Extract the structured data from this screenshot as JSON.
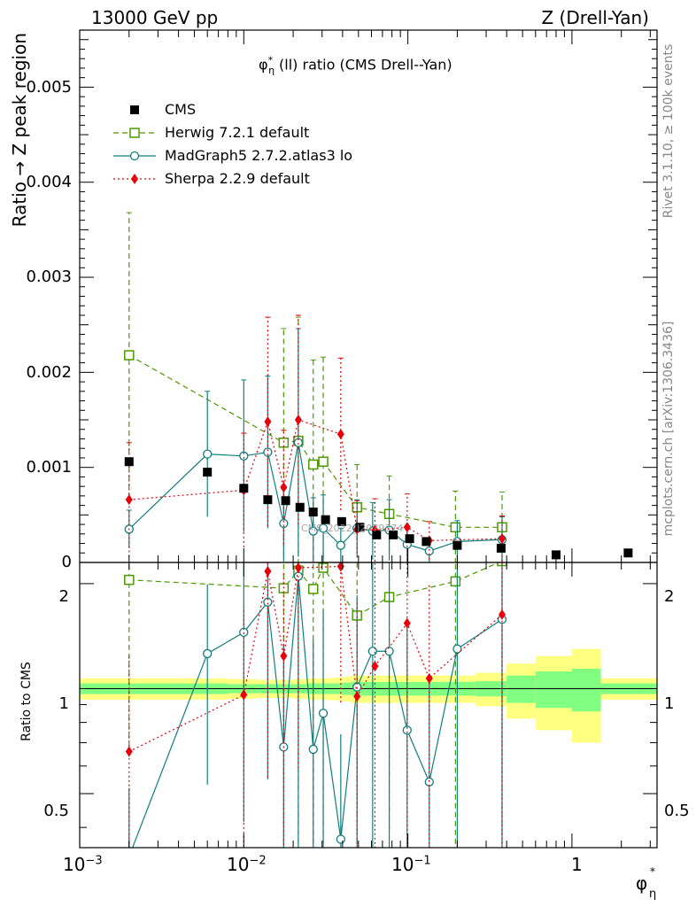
{
  "header": {
    "energy": "13000 GeV pp",
    "process": "Z (Drell-Yan)"
  },
  "side_text": {
    "rivet": "Rivet 3.1.10, ≥ 100k events",
    "mcplots": "mcplots.cern.ch [arXiv:1306.3436]"
  },
  "watermark": "CMS_2022_I2079374",
  "chart_data": {
    "type": "scatter",
    "title_main": "φ",
    "title_sup": "*",
    "title_sub": "η",
    "title_rest": "(ll) ratio (CMS Drell--Yan)",
    "ylabel": "Ratio → Z peak region",
    "ratio_ylabel": "Ratio to CMS",
    "xlabel_main": "φ",
    "xlabel_sup": "*",
    "xlabel_sub": "η",
    "xscale": "log",
    "xlim": [
      0.001,
      3.3
    ],
    "ylim": [
      0,
      0.0056
    ],
    "ratio_ylim": [
      0.35,
      2.3
    ],
    "y_ticks": [
      "0",
      "0.001",
      "0.002",
      "0.003",
      "0.004",
      "0.005"
    ],
    "x_ticks": [
      "10^-3",
      "10^-2",
      "10^-1",
      "1"
    ],
    "ratio_ticks": [
      "0.5",
      "1",
      "2"
    ],
    "legend_position": "top-left",
    "bins": [
      0.004,
      0.008,
      0.012,
      0.016,
      0.02,
      0.024,
      0.029,
      0.034,
      0.039,
      0.045,
      0.057,
      0.072,
      0.091,
      0.114,
      0.145,
      0.189,
      0.258,
      0.4,
      0.6,
      1.0,
      1.5,
      3.277
    ],
    "series": [
      {
        "name": "CMS",
        "color": "#000000",
        "marker": "square-filled",
        "points": [
          {
            "x": 0.002,
            "y": 0.00106
          },
          {
            "x": 0.006,
            "y": 0.00095
          },
          {
            "x": 0.01,
            "y": 0.00078
          },
          {
            "x": 0.014,
            "y": 0.00066
          },
          {
            "x": 0.018,
            "y": 0.00065
          },
          {
            "x": 0.022,
            "y": 0.00058
          },
          {
            "x": 0.0265,
            "y": 0.00053
          },
          {
            "x": 0.0315,
            "y": 0.00045
          },
          {
            "x": 0.0395,
            "y": 0.00043
          },
          {
            "x": 0.051,
            "y": 0.00037
          },
          {
            "x": 0.0645,
            "y": 0.00029
          },
          {
            "x": 0.0815,
            "y": 0.00029
          },
          {
            "x": 0.1025,
            "y": 0.00025
          },
          {
            "x": 0.1295,
            "y": 0.00022
          },
          {
            "x": 0.2,
            "y": 0.00018
          },
          {
            "x": 0.37,
            "y": 0.00015
          },
          {
            "x": 0.8,
            "y": 8e-05
          },
          {
            "x": 2.2,
            "y": 0.0001
          }
        ]
      },
      {
        "name": "Herwig 7.2.1 default",
        "color": "#4a9a00",
        "marker": "square-open",
        "dash": "6,4",
        "points": [
          {
            "x": 0.002,
            "y": 0.00218,
            "err": 0.0015,
            "ratio": 2.05
          },
          {
            "x": 0.0175,
            "y": 0.00126,
            "err": 0.0012,
            "ratio": 1.94
          },
          {
            "x": 0.0215,
            "y": 0.00128,
            "err": 0.0013,
            "ratio": 2.18
          },
          {
            "x": 0.0265,
            "y": 0.00103,
            "err": 0.0011,
            "ratio": 1.93
          },
          {
            "x": 0.0305,
            "y": 0.00106,
            "err": 0.0011,
            "ratio": 2.22
          },
          {
            "x": 0.049,
            "y": 0.00058,
            "err": 0.00045,
            "ratio": 1.62
          },
          {
            "x": 0.077,
            "y": 0.00051,
            "err": 0.0004,
            "ratio": 1.83
          },
          {
            "x": 0.195,
            "y": 0.00037,
            "err": 0.00038,
            "ratio": 2.03
          },
          {
            "x": 0.375,
            "y": 0.00037,
            "err": 0.00037,
            "ratio": 2.32
          }
        ]
      },
      {
        "name": "MadGraph5 2.7.2.atlas3 lo",
        "color": "#0f7f7f",
        "marker": "circle-open",
        "points": [
          {
            "x": 0.002,
            "y": 0.00035,
            "err": 0.0002,
            "ratio": 0.33
          },
          {
            "x": 0.006,
            "y": 0.00114,
            "err": 0.00066,
            "ratio": 1.26
          },
          {
            "x": 0.01,
            "y": 0.00112,
            "err": 0.0008,
            "ratio": 1.45
          },
          {
            "x": 0.014,
            "y": 0.00116,
            "err": 0.0008,
            "ratio": 1.77
          },
          {
            "x": 0.0175,
            "y": 0.00041,
            "err": 0.0004,
            "ratio": 0.68
          },
          {
            "x": 0.0215,
            "y": 0.00126,
            "err": 0.0012,
            "ratio": 2.1
          },
          {
            "x": 0.0265,
            "y": 0.00033,
            "err": 0.00035,
            "ratio": 0.67
          },
          {
            "x": 0.0305,
            "y": 0.00036,
            "err": 0.00035,
            "ratio": 0.85
          },
          {
            "x": 0.039,
            "y": 0.00018,
            "err": 0.00018,
            "ratio": 0.37
          },
          {
            "x": 0.049,
            "y": 0.00036,
            "err": 0.0003,
            "ratio": 1.01
          },
          {
            "x": 0.061,
            "y": 0.00033,
            "err": 0.0003,
            "ratio": 1.28
          },
          {
            "x": 0.077,
            "y": 0.00034,
            "err": 0.00032,
            "ratio": 1.28
          },
          {
            "x": 0.099,
            "y": 0.00019,
            "err": 0.0002,
            "ratio": 0.76
          },
          {
            "x": 0.135,
            "y": 0.00012,
            "err": 0.00012,
            "ratio": 0.54
          },
          {
            "x": 0.2,
            "y": 0.00022,
            "err": 0.00022,
            "ratio": 1.3
          },
          {
            "x": 0.375,
            "y": 0.00024,
            "err": 0.00024,
            "ratio": 1.58
          }
        ]
      },
      {
        "name": "Sherpa 2.2.9 default",
        "color": "#e8000b",
        "marker": "diamond-filled",
        "dash": "2,3",
        "points": [
          {
            "x": 0.002,
            "y": 0.00066,
            "err": 0.0006,
            "ratio": 0.66
          },
          {
            "x": 0.01,
            "y": 0.00076,
            "err": 0.0006,
            "ratio": 0.96
          },
          {
            "x": 0.014,
            "y": 0.00148,
            "err": 0.0011,
            "ratio": 2.17
          },
          {
            "x": 0.0175,
            "y": 0.00079,
            "err": 0.0006,
            "ratio": 1.24
          },
          {
            "x": 0.0215,
            "y": 0.0015,
            "err": 0.0011,
            "ratio": 2.22
          },
          {
            "x": 0.039,
            "y": 0.00135,
            "err": 0.0008,
            "ratio": 2.24
          },
          {
            "x": 0.049,
            "y": 0.00035,
            "err": 0.0003,
            "ratio": 0.95
          },
          {
            "x": 0.063,
            "y": 0.00034,
            "err": 0.00033,
            "ratio": 1.16
          },
          {
            "x": 0.099,
            "y": 0.00037,
            "err": 0.00035,
            "ratio": 1.54
          },
          {
            "x": 0.135,
            "y": 0.00023,
            "err": 0.0002,
            "ratio": 1.07
          },
          {
            "x": 0.375,
            "y": 0.00025,
            "err": 0.00024,
            "ratio": 1.63
          }
        ]
      }
    ],
    "band_colors": {
      "outer": "#ffff80",
      "inner": "#80ff80"
    },
    "band_outer_halfwidth": [
      0.07,
      0.07,
      0.065,
      0.06,
      0.06,
      0.065,
      0.07,
      0.07,
      0.075,
      0.08,
      0.09,
      0.09,
      0.09,
      0.09,
      0.09,
      0.09,
      0.09,
      0.11,
      0.18,
      0.24,
      0.3
    ],
    "band_inner_halfwidth": [
      0.035,
      0.035,
      0.03,
      0.03,
      0.03,
      0.03,
      0.035,
      0.035,
      0.035,
      0.04,
      0.045,
      0.045,
      0.045,
      0.045,
      0.045,
      0.045,
      0.045,
      0.05,
      0.09,
      0.12,
      0.14
    ]
  }
}
